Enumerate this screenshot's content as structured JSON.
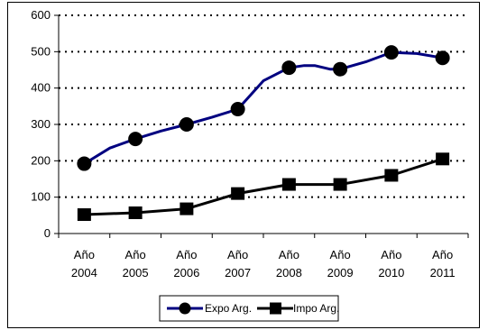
{
  "chart_data": {
    "type": "line",
    "title": "",
    "xlabel": "",
    "ylabel": "",
    "categories": [
      [
        "Año",
        "2004"
      ],
      [
        "Año",
        "2005"
      ],
      [
        "Año",
        "2006"
      ],
      [
        "Año",
        "2007"
      ],
      [
        "Año",
        "2008"
      ],
      [
        "Año",
        "2009"
      ],
      [
        "Año",
        "2010"
      ],
      [
        "Año",
        "2011"
      ]
    ],
    "ylim": [
      0,
      600
    ],
    "yticks": [
      "0",
      "100",
      "200",
      "300",
      "400",
      "500",
      "600"
    ],
    "grid": "horizontal dotted",
    "legend_position": "bottom",
    "series": [
      {
        "name": "Expo Arg.",
        "marker": "circle",
        "color": "#000080",
        "values": [
          192,
          260,
          300,
          342,
          456,
          452,
          498,
          483
        ],
        "path_x": [
          0,
          0.5,
          1,
          1.5,
          2,
          2.5,
          3,
          3.5,
          4,
          4.3,
          4.5,
          4.8,
          5,
          5.5,
          6,
          6.5,
          7
        ],
        "path_y": [
          192,
          235,
          260,
          282,
          300,
          320,
          342,
          420,
          456,
          462,
          462,
          452,
          452,
          472,
          498,
          495,
          483
        ]
      },
      {
        "name": "Impo Arg.",
        "marker": "square",
        "color": "#000000",
        "values": [
          52,
          57,
          68,
          110,
          135,
          135,
          160,
          205
        ]
      }
    ]
  }
}
